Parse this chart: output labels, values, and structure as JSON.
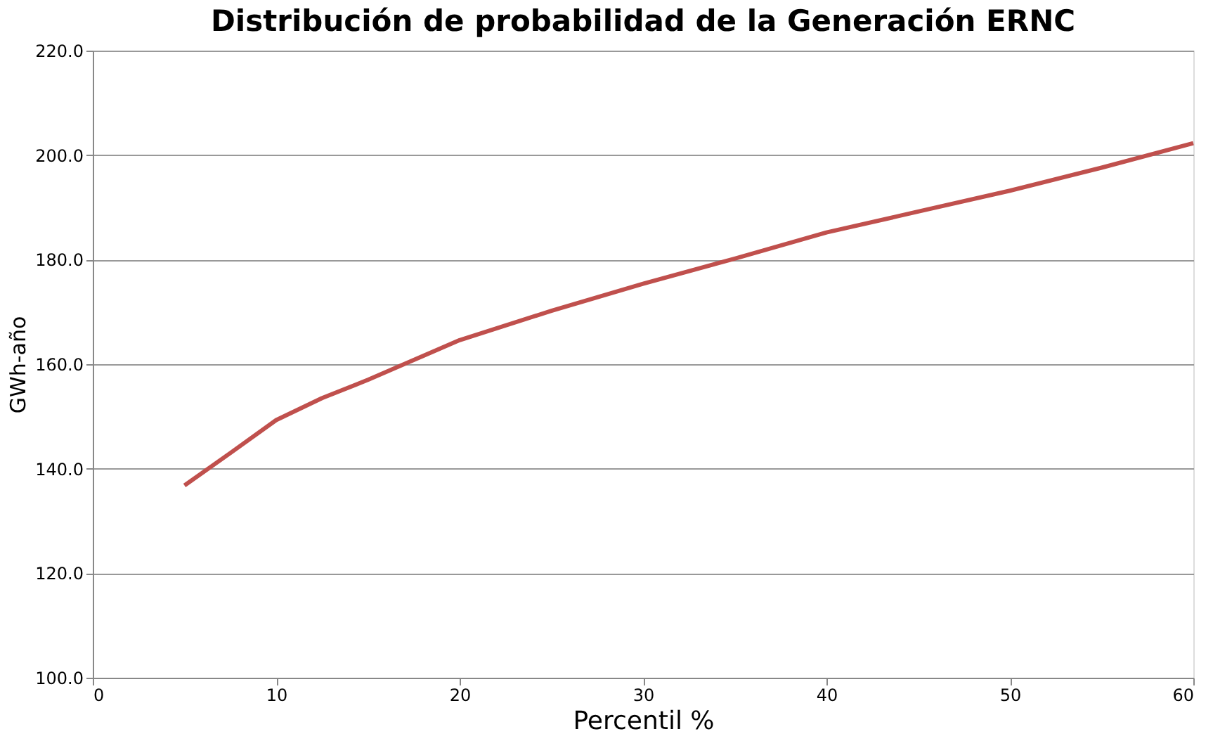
{
  "chart_data": {
    "type": "line",
    "title": "Distribución de probabilidad de la Generación  ERNC",
    "xlabel": "Percentil %",
    "ylabel": "GWh-año",
    "x": [
      5,
      7.5,
      10,
      12.5,
      15,
      17.5,
      20,
      25,
      30,
      35,
      40,
      45,
      50,
      55,
      60
    ],
    "series": [
      {
        "color": "#c0504d",
        "values": [
          136.8,
          143.0,
          149.3,
          153.5,
          157.0,
          160.8,
          164.6,
          170.2,
          175.4,
          180.2,
          185.2,
          189.2,
          193.2,
          197.6,
          202.3
        ]
      }
    ],
    "xlim": [
      0,
      60
    ],
    "xticks": [
      0,
      10,
      20,
      30,
      40,
      50,
      60
    ],
    "ylim": [
      100,
      220
    ],
    "yticks": [
      {
        "value": 100,
        "label": "100.0"
      },
      {
        "value": 120,
        "label": "120.0"
      },
      {
        "value": 140,
        "label": "140.0"
      },
      {
        "value": 160,
        "label": "160.0"
      },
      {
        "value": 180,
        "label": "180.0"
      },
      {
        "value": 200,
        "label": "200.0"
      },
      {
        "value": 220,
        "label": "220.0"
      }
    ],
    "grid": "y",
    "legend": false,
    "line_style": "solid",
    "marker": "none"
  }
}
